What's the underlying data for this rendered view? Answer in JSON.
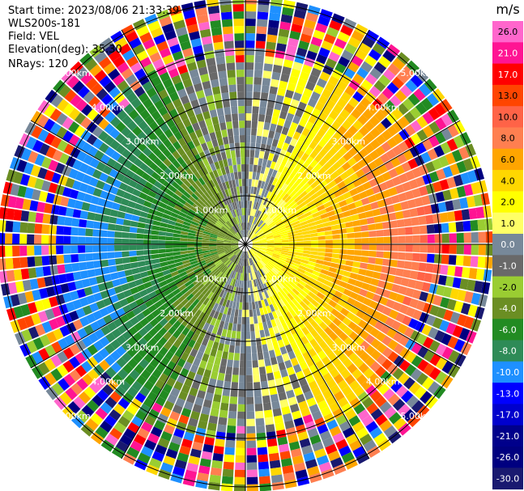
{
  "header": {
    "start_time": "Start time: 2023/08/06 21:33:39",
    "instrument": "WLS200s-181",
    "field": "Field: VEL",
    "elevation": "Elevation(deg): 35.30",
    "nrays": "NRays: 120"
  },
  "range_labels": [
    "1.00km",
    "2.00km",
    "3.00km",
    "4.00km",
    "5.00km"
  ],
  "colorbar": {
    "unit": "m/s",
    "ticks": [
      "26.0",
      "21.0",
      "17.0",
      "13.0",
      "10.0",
      "8.0",
      "6.0",
      "4.0",
      "2.0",
      "1.0",
      "0.0",
      "-1.0",
      "-2.0",
      "-4.0",
      "-6.0",
      "-8.0",
      "-10.0",
      "-13.0",
      "-17.0",
      "-21.0",
      "-26.0",
      "-30.0"
    ],
    "colors": [
      "#ff66cc",
      "#ff1493",
      "#ff0000",
      "#ff4500",
      "#ff6347",
      "#ff7f50",
      "#ffa500",
      "#ffd700",
      "#ffff00",
      "#ffff66",
      "#778899",
      "#696969",
      "#9acd32",
      "#6b8e23",
      "#228b22",
      "#2e8b57",
      "#1e90ff",
      "#0000ff",
      "#0000cd",
      "#00008b",
      "#000080",
      "#191970"
    ]
  }
}
